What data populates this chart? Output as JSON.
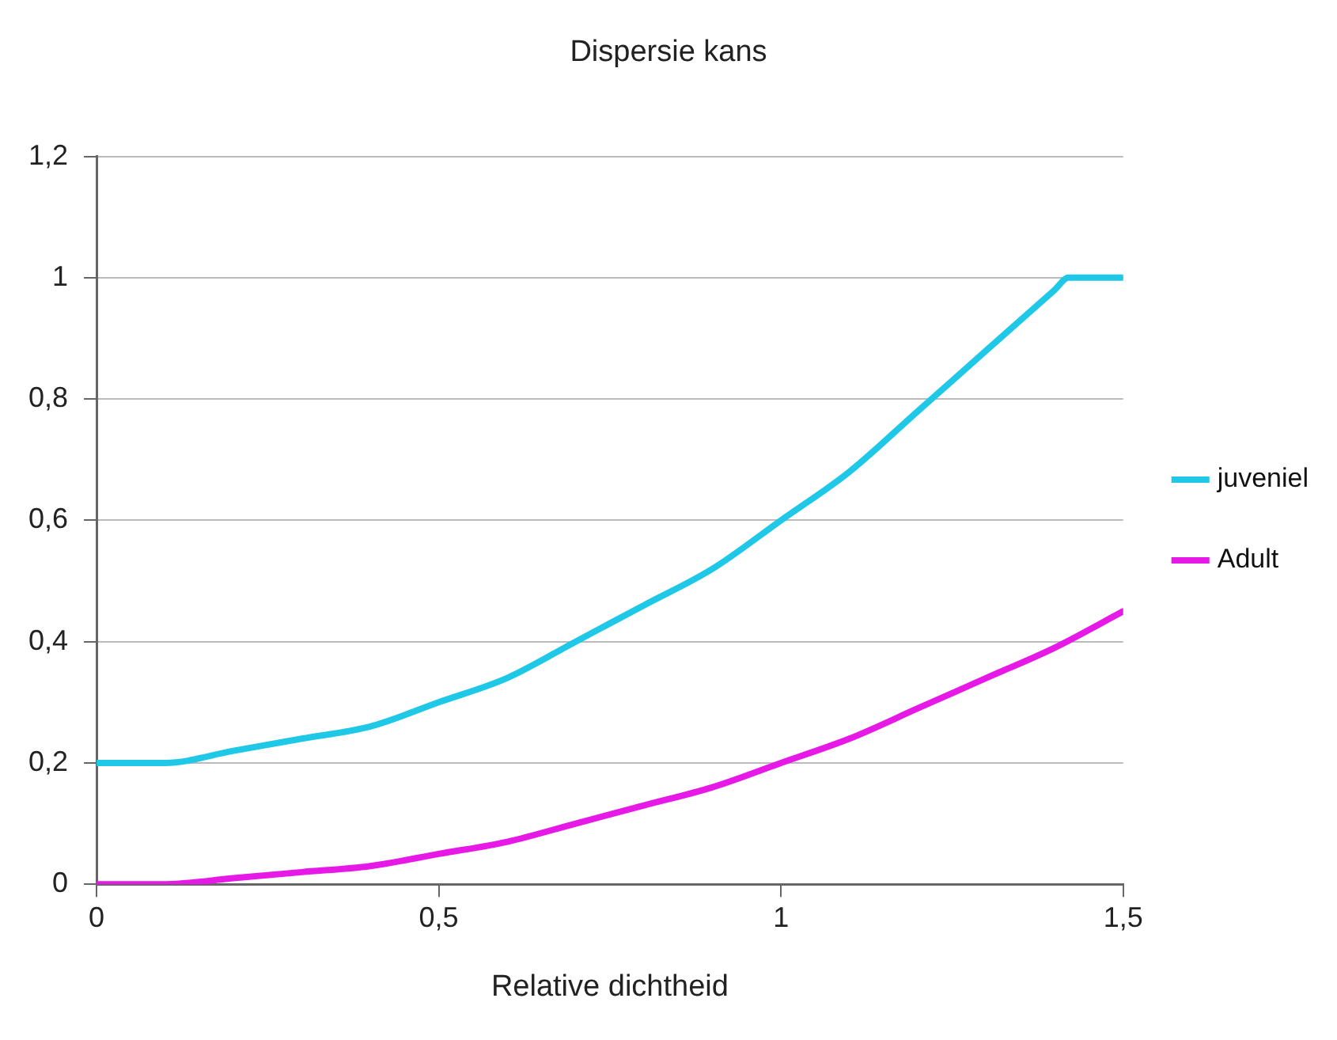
{
  "chart_data": {
    "type": "line",
    "title": "Dispersie kans",
    "xlabel": "Relative dichtheid",
    "xlim": [
      0,
      1.5
    ],
    "xticks": [
      0,
      {
        "value": 0.5,
        "label": "0,5"
      },
      1,
      {
        "value": 1.5,
        "label": "1,5"
      }
    ],
    "ylim": [
      0,
      1.2
    ],
    "yticks": [
      0,
      {
        "value": 0.2,
        "label": "0,2"
      },
      {
        "value": 0.4,
        "label": "0,4"
      },
      {
        "value": 0.6,
        "label": "0,6"
      },
      {
        "value": 0.8,
        "label": "0,8"
      },
      1,
      {
        "value": 1.2,
        "label": "1,2"
      }
    ],
    "grid": "y",
    "legend": "right",
    "marker": "none",
    "line_style": "solid",
    "series": [
      {
        "name": "juveniel",
        "color": "#1ec8e6",
        "x": [
          0,
          0.1,
          0.2,
          0.3,
          0.4,
          0.5,
          0.6,
          0.7,
          0.8,
          0.9,
          1,
          1.1,
          1.2,
          1.3,
          1.4,
          1.42,
          1.5
        ],
        "values": [
          0.2,
          0.2,
          0.22,
          0.24,
          0.26,
          0.3,
          0.34,
          0.4,
          0.46,
          0.52,
          0.6,
          0.68,
          0.78,
          0.88,
          0.98,
          1,
          1
        ]
      },
      {
        "name": "Adult",
        "color": "#e619e6",
        "x": [
          0,
          0.1,
          0.2,
          0.3,
          0.4,
          0.5,
          0.6,
          0.7,
          0.8,
          0.9,
          1,
          1.1,
          1.2,
          1.3,
          1.4,
          1.5
        ],
        "values": [
          0,
          0,
          0.01,
          0.02,
          0.03,
          0.05,
          0.07,
          0.1,
          0.13,
          0.16,
          0.2,
          0.24,
          0.29,
          0.34,
          0.39,
          0.45
        ]
      }
    ]
  }
}
